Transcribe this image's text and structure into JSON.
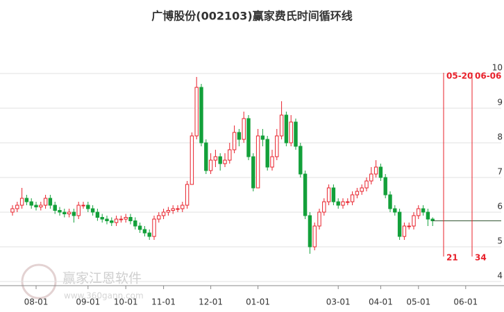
{
  "chart_data": {
    "type": "candlestick",
    "title": "广博股份(002103)赢家费氏时间循环线",
    "watermark": {
      "brand": "赢家江恩软件",
      "url": "www.360gann.com"
    },
    "categories": [
      null,
      null,
      null,
      null,
      null,
      "08-01",
      null,
      null,
      null,
      null,
      null,
      null,
      null,
      null,
      null,
      null,
      "09-01",
      null,
      null,
      null,
      null,
      null,
      null,
      null,
      "10-01",
      null,
      null,
      null,
      null,
      null,
      null,
      null,
      "11-01",
      null,
      null,
      null,
      null,
      null,
      null,
      null,
      null,
      null,
      "12-01",
      null,
      null,
      null,
      null,
      null,
      null,
      null,
      null,
      null,
      "01-01",
      null,
      null,
      null,
      null,
      null,
      null,
      null,
      null,
      null,
      null,
      null,
      null,
      null,
      null,
      null,
      null,
      "03-01",
      null,
      null,
      null,
      null,
      null,
      null,
      null,
      null,
      "04-01",
      null,
      null,
      null,
      null,
      null,
      null,
      null,
      "05-01",
      null,
      null,
      null,
      null,
      null,
      null,
      null,
      null,
      null,
      "06-01",
      null,
      null,
      null,
      null,
      null,
      null,
      null
    ],
    "open": [
      6.0,
      6.1,
      6.2,
      6.4,
      6.3,
      6.2,
      6.15,
      6.2,
      6.4,
      6.2,
      6.05,
      6.0,
      5.95,
      6.0,
      5.9,
      6.2,
      6.2,
      6.1,
      6.0,
      5.85,
      5.8,
      5.75,
      5.7,
      5.8,
      5.8,
      5.85,
      5.75,
      5.6,
      5.5,
      5.4,
      5.3,
      5.8,
      5.9,
      6.0,
      6.05,
      6.1,
      6.1,
      6.2,
      6.8,
      8.2,
      9.6,
      8.0,
      7.2,
      7.5,
      7.6,
      7.4,
      7.5,
      7.8,
      8.3,
      8.1,
      8.7,
      7.6,
      6.7,
      8.2,
      8.1,
      7.3,
      7.6,
      8.2,
      8.8,
      8.0,
      8.6,
      7.9,
      7.1,
      5.9,
      5.0,
      5.6,
      6.0,
      6.3,
      6.7,
      6.3,
      6.2,
      6.3,
      6.3,
      6.5,
      6.6,
      6.7,
      6.9,
      7.1,
      7.3,
      7.0,
      6.5,
      6.1,
      6.0,
      5.3,
      5.6,
      5.6,
      5.9,
      6.1,
      6.0,
      5.8,
      null,
      null,
      null,
      null,
      null,
      null,
      null,
      null,
      null,
      null,
      null,
      null,
      null,
      null
    ],
    "close": [
      6.1,
      6.2,
      6.4,
      6.3,
      6.2,
      6.15,
      6.2,
      6.4,
      6.2,
      6.05,
      6.0,
      5.95,
      6.0,
      5.9,
      6.2,
      6.2,
      6.1,
      6.0,
      5.85,
      5.8,
      5.75,
      5.7,
      5.8,
      5.8,
      5.85,
      5.75,
      5.6,
      5.5,
      5.4,
      5.3,
      5.8,
      5.9,
      6.0,
      6.05,
      6.1,
      6.1,
      6.2,
      6.8,
      8.2,
      9.6,
      8.0,
      7.2,
      7.5,
      7.6,
      7.4,
      7.5,
      7.8,
      8.3,
      8.1,
      8.7,
      7.6,
      6.7,
      8.2,
      8.1,
      7.3,
      7.6,
      8.2,
      8.8,
      8.0,
      8.6,
      7.9,
      7.1,
      5.9,
      5.0,
      5.6,
      6.0,
      6.3,
      6.7,
      6.3,
      6.2,
      6.3,
      6.3,
      6.5,
      6.6,
      6.7,
      6.9,
      7.1,
      7.3,
      7.0,
      6.5,
      6.1,
      6.0,
      5.3,
      5.6,
      5.6,
      5.9,
      6.1,
      6.0,
      5.8,
      5.75,
      null,
      null,
      null,
      null,
      null,
      null,
      null,
      null,
      null,
      null,
      null,
      null,
      null,
      null
    ],
    "high": [
      6.2,
      6.3,
      6.7,
      6.5,
      6.4,
      6.3,
      6.3,
      6.5,
      6.5,
      6.3,
      6.15,
      6.1,
      6.1,
      6.1,
      6.3,
      6.3,
      6.3,
      6.2,
      6.1,
      5.95,
      5.9,
      5.85,
      5.9,
      5.9,
      5.95,
      5.95,
      5.85,
      5.7,
      5.6,
      5.5,
      5.9,
      6.0,
      6.1,
      6.15,
      6.2,
      6.2,
      6.3,
      6.9,
      8.3,
      9.9,
      9.7,
      8.1,
      7.7,
      7.8,
      7.7,
      7.7,
      8.0,
      8.5,
      8.4,
      8.9,
      8.8,
      7.7,
      8.4,
      8.4,
      8.2,
      7.8,
      8.4,
      9.2,
      8.9,
      8.8,
      8.7,
      8.0,
      7.2,
      6.0,
      5.7,
      6.1,
      6.4,
      6.8,
      6.8,
      6.4,
      6.4,
      6.4,
      6.6,
      6.7,
      6.8,
      7.0,
      7.3,
      7.5,
      7.4,
      7.1,
      6.6,
      6.2,
      6.1,
      5.7,
      5.7,
      6.0,
      6.2,
      6.2,
      6.1,
      5.85,
      null,
      null,
      null,
      null,
      null,
      null,
      null,
      null,
      null,
      null,
      null,
      null,
      null,
      null
    ],
    "low": [
      5.9,
      6.0,
      6.1,
      6.2,
      6.1,
      6.05,
      6.05,
      6.1,
      6.1,
      5.95,
      5.9,
      5.85,
      5.85,
      5.7,
      5.8,
      6.1,
      6.0,
      5.9,
      5.75,
      5.7,
      5.65,
      5.6,
      5.6,
      5.7,
      5.7,
      5.65,
      5.5,
      5.4,
      5.3,
      5.2,
      5.2,
      5.7,
      5.8,
      5.9,
      5.95,
      6.0,
      6.0,
      6.1,
      6.8,
      8.1,
      7.9,
      7.1,
      7.1,
      7.3,
      7.2,
      7.3,
      7.4,
      7.7,
      7.9,
      8.0,
      7.5,
      6.6,
      6.7,
      7.9,
      7.2,
      7.2,
      7.5,
      8.1,
      7.9,
      7.9,
      7.8,
      7.0,
      5.8,
      4.8,
      4.9,
      5.5,
      5.9,
      6.2,
      6.2,
      6.1,
      6.1,
      6.2,
      6.2,
      6.4,
      6.5,
      6.6,
      6.8,
      7.0,
      6.9,
      6.4,
      6.0,
      5.9,
      5.2,
      5.2,
      5.5,
      5.5,
      5.8,
      5.9,
      5.6,
      5.6,
      null,
      null,
      null,
      null,
      null,
      null,
      null,
      null,
      null,
      null,
      null,
      null,
      null,
      null
    ],
    "up_color": "#e8202a",
    "down_color": "#13a03a",
    "reference_line": 5.75,
    "markers": [
      {
        "date": "05-20",
        "count": "21"
      },
      {
        "date": "06-06",
        "count": "34"
      }
    ],
    "ylim": [
      3.88,
      10.24
    ],
    "yticks": [
      4,
      5,
      6,
      7,
      8,
      9,
      10
    ],
    "grid": true
  }
}
